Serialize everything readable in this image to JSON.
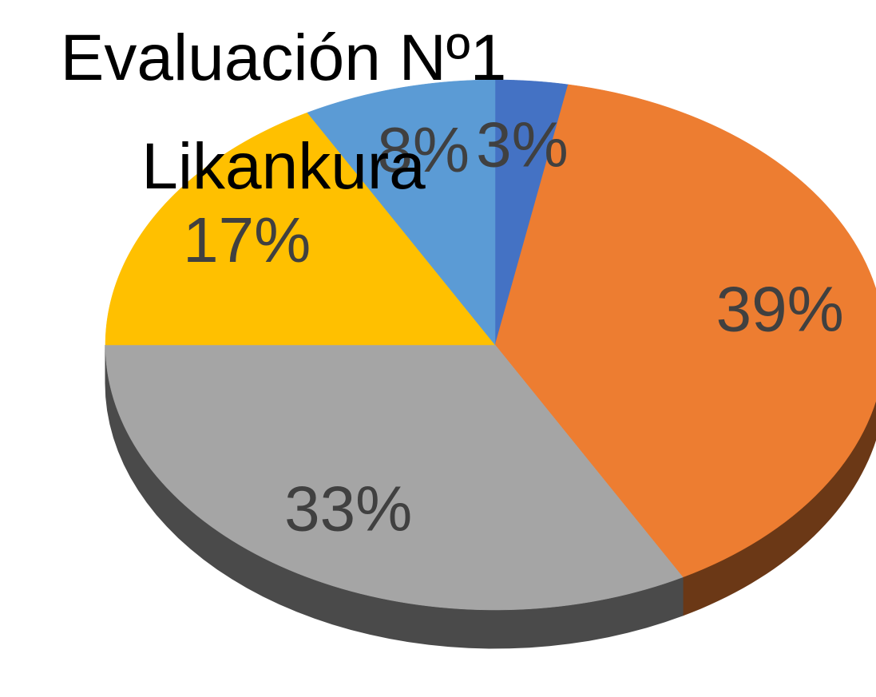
{
  "chart_data": {
    "type": "pie",
    "title": "Evaluación Nº1 Likankura",
    "categories": [
      null,
      null,
      null,
      null,
      null
    ],
    "values": [
      3,
      39,
      33,
      17,
      8
    ],
    "value_labels": [
      "3%",
      "39%",
      "33%",
      "17%",
      "8%"
    ],
    "colors": [
      "#4472c4",
      "#ed7d31",
      "#a5a5a5",
      "#ffc000",
      "#5b9bd5"
    ]
  }
}
